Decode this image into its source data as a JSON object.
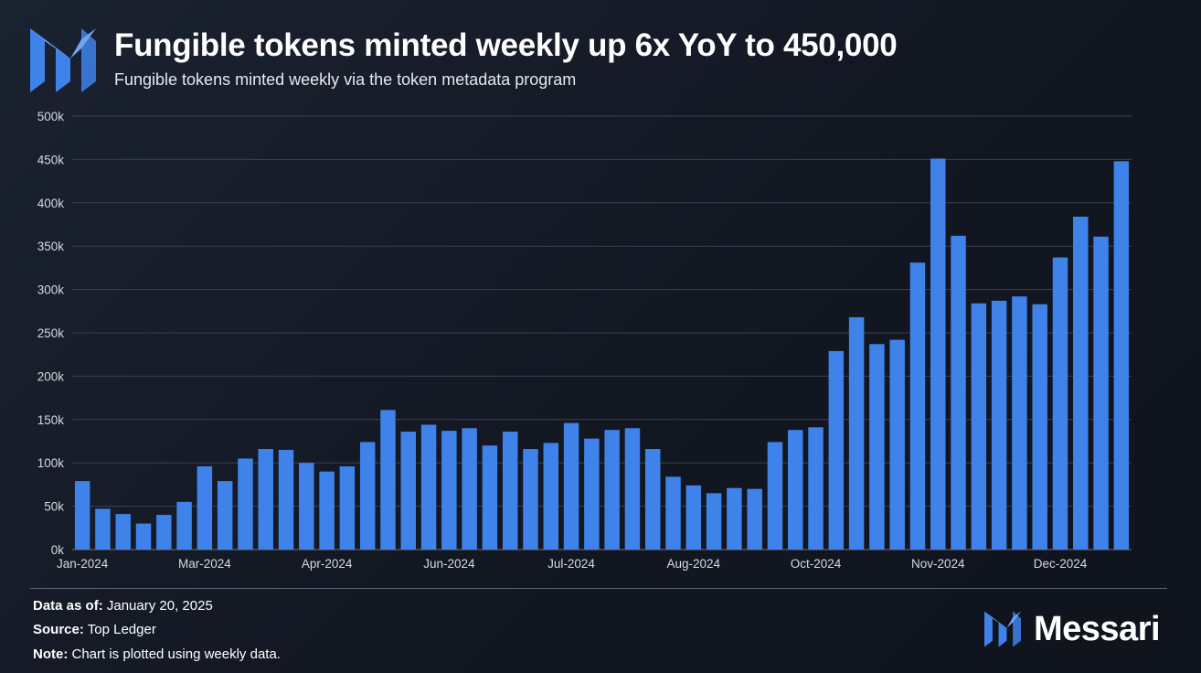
{
  "header": {
    "title": "Fungible tokens minted weekly up 6x YoY to 450,000",
    "subtitle": "Fungible tokens minted weekly via the token metadata program",
    "logo_icon": "messari-m-icon"
  },
  "footer": {
    "data_as_of_label": "Data as of:",
    "data_as_of_value": "January 20, 2025",
    "source_label": "Source:",
    "source_value": "Top Ledger",
    "note_label": "Note:",
    "note_value": "Chart is plotted using weekly data.",
    "brand_name": "Messari"
  },
  "colors": {
    "bar": "#3f82ea",
    "grid": "#3a4150",
    "axis_text": "#d6dae2"
  },
  "chart_data": {
    "type": "bar",
    "title": "Fungible tokens minted weekly up 6x YoY to 450,000",
    "subtitle": "Fungible tokens minted weekly via the token metadata program",
    "xlabel": "",
    "ylabel": "",
    "ylim": [
      0,
      500000
    ],
    "yticks": [
      {
        "value": 0,
        "label": "0k"
      },
      {
        "value": 50000,
        "label": "50k"
      },
      {
        "value": 100000,
        "label": "100k"
      },
      {
        "value": 150000,
        "label": "150k"
      },
      {
        "value": 200000,
        "label": "200k"
      },
      {
        "value": 250000,
        "label": "250k"
      },
      {
        "value": 300000,
        "label": "300k"
      },
      {
        "value": 350000,
        "label": "350k"
      },
      {
        "value": 400000,
        "label": "400k"
      },
      {
        "value": 450000,
        "label": "450k"
      },
      {
        "value": 500000,
        "label": "500k"
      }
    ],
    "xticks": [
      {
        "index": 0,
        "label": "Jan-2024"
      },
      {
        "index": 6,
        "label": "Mar-2024"
      },
      {
        "index": 12,
        "label": "Apr-2024"
      },
      {
        "index": 18,
        "label": "Jun-2024"
      },
      {
        "index": 24,
        "label": "Jul-2024"
      },
      {
        "index": 30,
        "label": "Aug-2024"
      },
      {
        "index": 36,
        "label": "Oct-2024"
      },
      {
        "index": 42,
        "label": "Nov-2024"
      },
      {
        "index": 48,
        "label": "Dec-2024"
      }
    ],
    "grid": true,
    "legend": "none",
    "series": [
      {
        "values": [
          79000,
          47000,
          41000,
          30000,
          40000,
          55000,
          96000,
          79000,
          105000,
          116000,
          115000,
          100000,
          90000,
          96000,
          124000,
          161000,
          136000,
          144000,
          137000,
          140000,
          120000,
          136000,
          116000,
          123000,
          146000,
          128000,
          138000,
          140000,
          116000,
          84000,
          74000,
          65000,
          71000,
          70000,
          124000,
          138000,
          141000,
          229000,
          268000,
          237000,
          242000,
          331000,
          451000,
          362000,
          284000,
          287000,
          292000,
          283000,
          337000,
          384000,
          361000,
          448000
        ]
      }
    ]
  }
}
